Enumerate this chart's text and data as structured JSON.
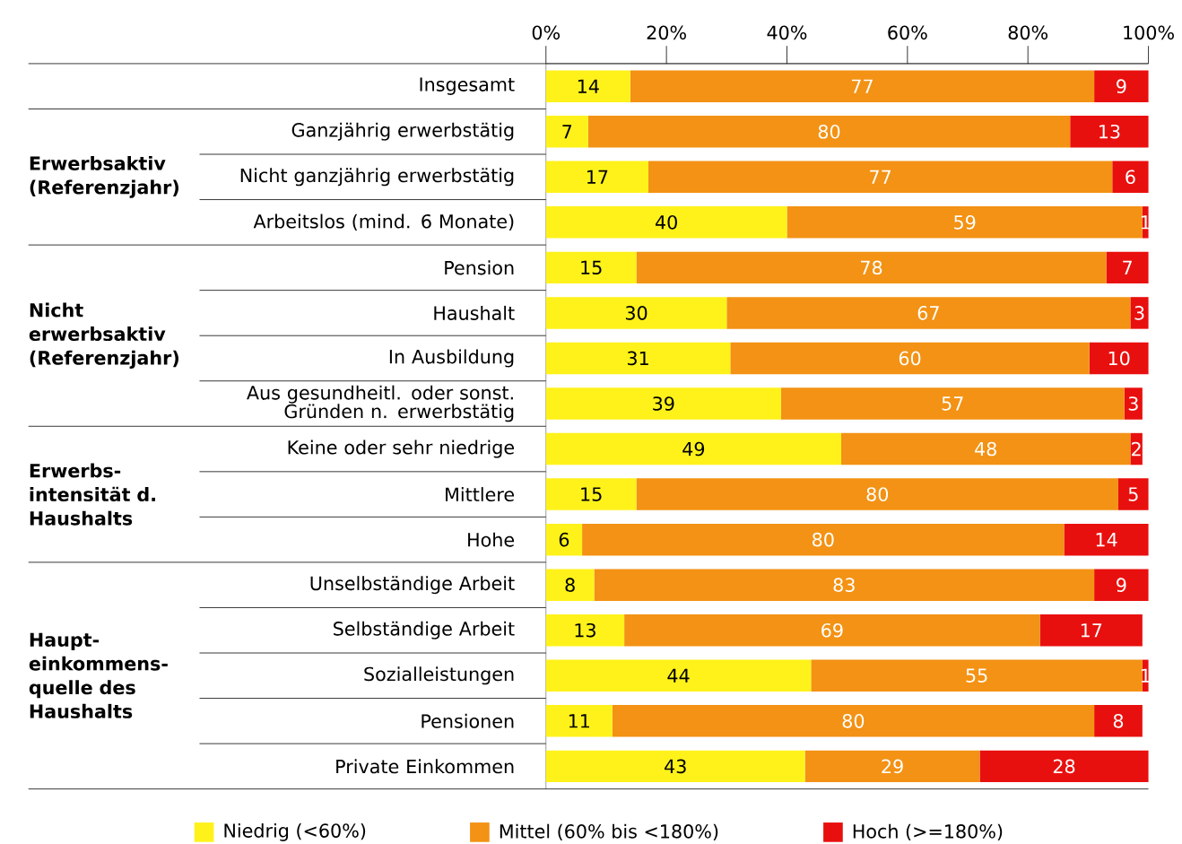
{
  "chart_data": {
    "type": "bar",
    "orientation": "horizontal",
    "stacked": true,
    "categories": [
      "Insgesamt",
      "Ganzjährig erwerbstätig",
      "Nicht ganzjährig erwerbstätig",
      "Arbeitslos (mind. 6 Monate)",
      "Pension",
      "Haushalt",
      "In Ausbildung",
      "Aus gesundheitl. oder sonst. Gründen n. erwerbstätig",
      "Keine oder sehr niedrige",
      "Mittlere",
      "Hohe",
      "Unselbständige Arbeit",
      "Selbständige Arbeit",
      "Sozialleistungen",
      "Pensionen",
      "Private Einkommen"
    ],
    "series": [
      {
        "name": "Niedrig (<60%)",
        "color": "#fff21a",
        "values": [
          14,
          7,
          17,
          40,
          15,
          30,
          30.6,
          39,
          49,
          15,
          6,
          8,
          13,
          44,
          11,
          43
        ],
        "value_labels": [
          "14",
          "7",
          "17",
          "40",
          "15",
          "30",
          "31",
          "39",
          "49",
          "15",
          "6",
          "8",
          "13",
          "44",
          "11",
          "43"
        ]
      },
      {
        "name": "Mittel (60% bis <180%)",
        "color": "#f39214",
        "values": [
          77,
          80,
          77,
          59,
          78,
          67,
          59.6,
          57,
          48,
          80,
          80,
          83,
          69,
          55,
          80,
          29
        ],
        "value_labels": [
          "77",
          "80",
          "77",
          "59",
          "78",
          "67",
          "60",
          "57",
          "48",
          "80",
          "80",
          "83",
          "69",
          "55",
          "80",
          "29"
        ]
      },
      {
        "name": "Hoch (>=180%)",
        "color": "#e8100e",
        "values": [
          9,
          13,
          6,
          1,
          7,
          3,
          9.8,
          3,
          2,
          5,
          14,
          9,
          17,
          1,
          8,
          28
        ],
        "value_labels": [
          "9",
          "13",
          "6",
          "1",
          "7",
          "3",
          "10",
          "3",
          "2",
          "5",
          "14",
          "9",
          "17",
          "1",
          "8",
          "28"
        ]
      }
    ],
    "xlim": [
      0,
      100
    ],
    "xticks": [
      {
        "value": 0,
        "label": "0%"
      },
      {
        "value": 20,
        "label": "20%"
      },
      {
        "value": 40,
        "label": "40%"
      },
      {
        "value": 60,
        "label": "60%"
      },
      {
        "value": 80,
        "label": "80%"
      },
      {
        "value": 100,
        "label": "100%"
      }
    ],
    "annotations": [
      "Erwerbsaktiv (Referenzjahr)",
      "Nicht erwerbsaktiv (Referenzjahr)",
      "Erwerbs-intensität d. Haushalts",
      "Haupt-einkommens-quelle des Haushalts"
    ],
    "legend": "bottom",
    "grid": false
  }
}
